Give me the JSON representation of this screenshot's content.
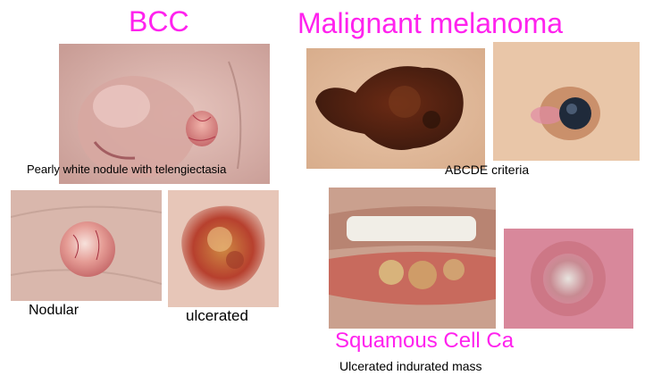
{
  "titles": {
    "bcc": "BCC",
    "melanoma": "Malignant melanoma",
    "scc": "Squamous Cell Ca"
  },
  "captions": {
    "bcc_main": "Pearly white nodule with telengiectasia",
    "melanoma": "ABCDE criteria",
    "nodular": "Nodular",
    "ulcerated": "ulcerated",
    "scc": "Ulcerated indurated mass"
  },
  "colors": {
    "title": "#ff22ee",
    "caption": "#000000",
    "background": "#ffffff"
  },
  "images": {
    "bcc_nose": "clinical-photo-nose-nodule",
    "melanoma_large": "clinical-photo-pigmented-lesion",
    "melanoma_small": "clinical-photo-dark-nodule",
    "bcc_nodular": "clinical-photo-nodular-bcc",
    "bcc_ulcerated": "clinical-photo-ulcerated-bcc",
    "scc_lip": "clinical-photo-lip-scc",
    "scc_nodule": "clinical-photo-ulcerated-nodule"
  }
}
